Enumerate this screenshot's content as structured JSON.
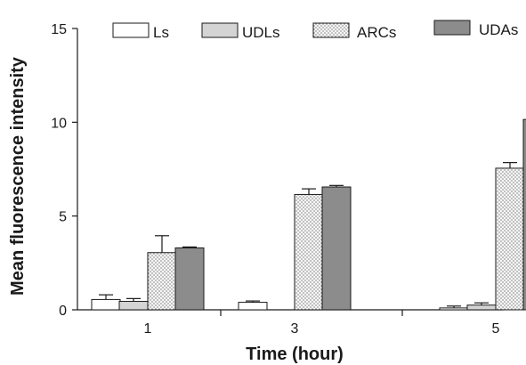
{
  "chart_data": {
    "type": "bar",
    "xlabel": "Time (hour)",
    "ylabel": "Mean fluorescence intensity",
    "ylim": [
      0,
      15
    ],
    "yticks": [
      0,
      5,
      10,
      15
    ],
    "categories": [
      "1",
      "3",
      "5"
    ],
    "series": [
      {
        "name": "Ls",
        "fill": "white",
        "values": [
          0.55,
          0.4,
          0.1
        ],
        "errors": [
          0.25,
          0.07,
          0.1
        ]
      },
      {
        "name": "UDLs",
        "fill": "light-gray",
        "values": [
          0.45,
          null,
          0.25
        ],
        "errors": [
          0.15,
          null,
          0.12
        ]
      },
      {
        "name": "ARCs",
        "fill": "dotted",
        "values": [
          3.05,
          6.15,
          7.55
        ],
        "errors": [
          0.9,
          0.3,
          0.3
        ]
      },
      {
        "name": "UDAs",
        "fill": "dark-gray",
        "values": [
          3.3,
          6.55,
          10.15
        ],
        "errors": [
          0.05,
          0.08,
          0.03
        ]
      }
    ],
    "legend_position": "top",
    "grid": false
  },
  "colors": {
    "axis": "#1a1a1a",
    "white_fill": "#ffffff",
    "light_gray_fill": "#d4d4d4",
    "dotted_base": "#f6f6f6",
    "dotted_dot": "#7a7a7a",
    "dark_gray_fill": "#8c8c8c"
  }
}
